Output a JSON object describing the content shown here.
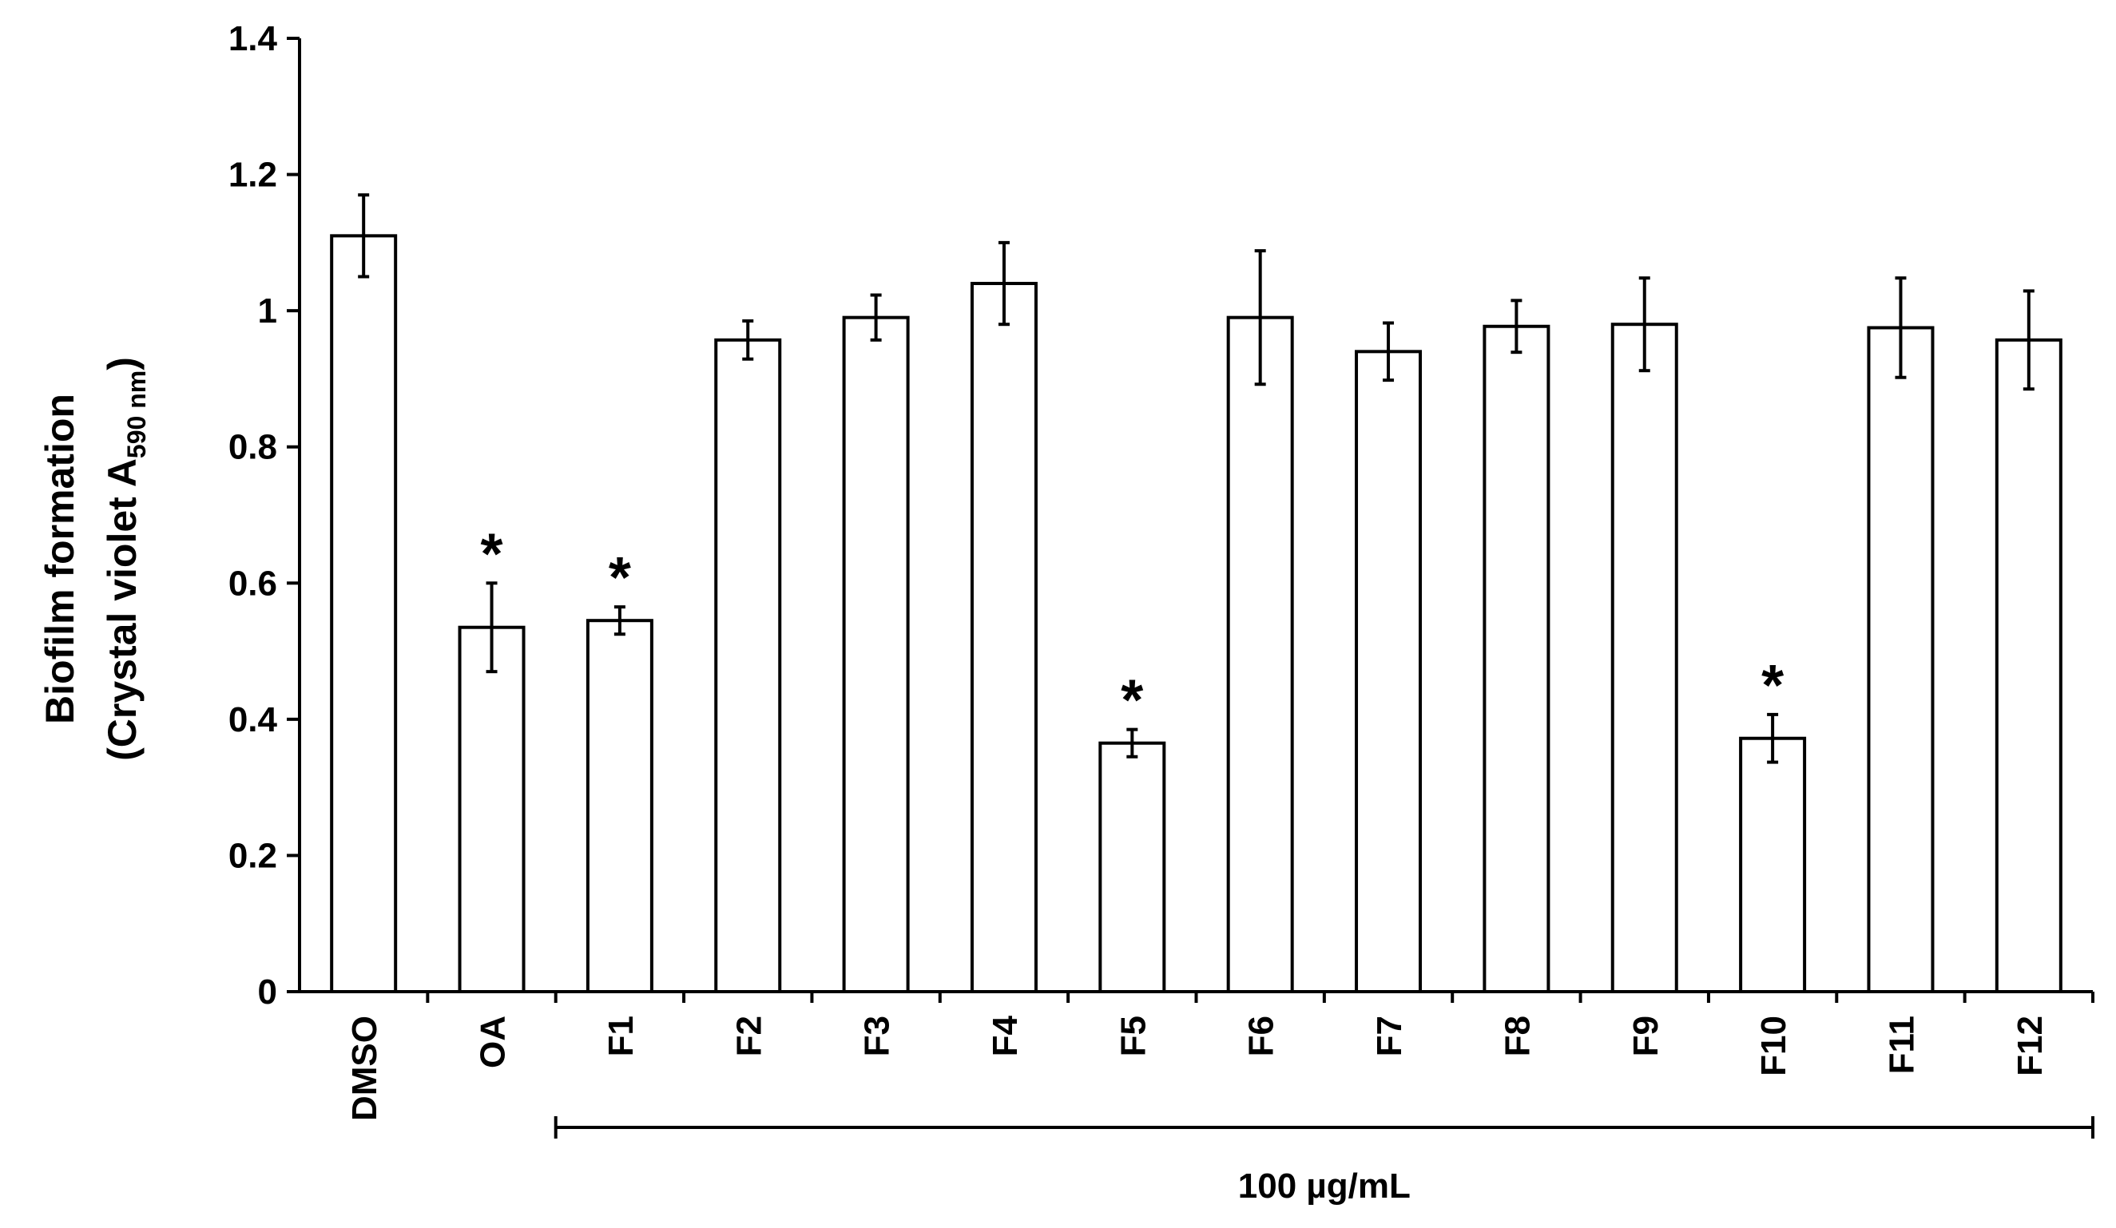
{
  "chart_data": {
    "type": "bar",
    "categories": [
      "DMSO",
      "OA",
      "F1",
      "F2",
      "F3",
      "F4",
      "F5",
      "F6",
      "F7",
      "F8",
      "F9",
      "F10",
      "F11",
      "F12"
    ],
    "values": [
      1.11,
      0.535,
      0.545,
      0.957,
      0.99,
      1.04,
      0.365,
      0.99,
      0.94,
      0.977,
      0.98,
      0.372,
      0.975,
      0.957
    ],
    "errors": [
      0.06,
      0.065,
      0.02,
      0.028,
      0.033,
      0.06,
      0.02,
      0.098,
      0.042,
      0.038,
      0.068,
      0.035,
      0.073,
      0.072
    ],
    "significant": [
      false,
      true,
      true,
      false,
      false,
      false,
      true,
      false,
      false,
      false,
      false,
      true,
      false,
      false
    ],
    "significance_marker": "*",
    "ylabel_line1": "Biofilm formation",
    "ylabel_line2_prefix": "(Crystal violet A",
    "ylabel_subscript": "590 nm",
    "ylabel_line2_suffix": ")",
    "ylim": [
      0,
      1.4
    ],
    "yticks": [
      "0",
      "0.2",
      "0.4",
      "0.6",
      "0.8",
      "1",
      "1.2",
      "1.4"
    ],
    "yticks_values": [
      0,
      0.2,
      0.4,
      0.6,
      0.8,
      1.0,
      1.2,
      1.4
    ],
    "bracket": {
      "from": "F1",
      "to": "F12",
      "label": "100 µg/mL"
    },
    "bar_fill": "#ffffff",
    "bar_stroke": "#000000",
    "grid": false,
    "legend": "none"
  }
}
